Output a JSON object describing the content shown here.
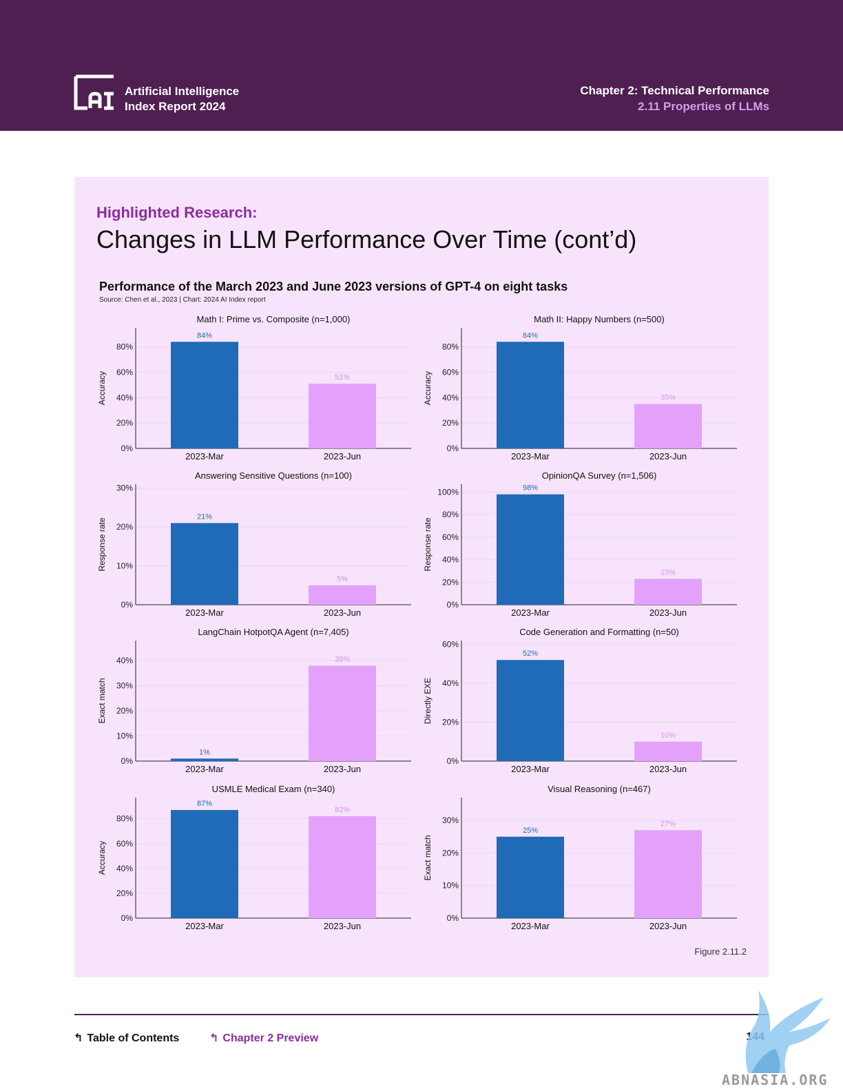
{
  "header": {
    "brand_line1": "Artificial Intelligence",
    "brand_line2": "Index Report 2024",
    "chapter": "Chapter 2: Technical Performance",
    "section": "2.11 Properties of LLMs",
    "background_color": "#4f1f52",
    "section_color": "#d79ce8"
  },
  "content": {
    "eyebrow": "Highlighted Research:",
    "title": "Changes in LLM Performance Over Time (cont’d)",
    "chart_title": "Performance of the March 2023 and June 2023 versions of GPT-4 on eight tasks",
    "chart_source": "Source: Chen et al., 2023 | Chart: 2024 AI Index report",
    "figure_label": "Figure 2.11.2",
    "panel_color": "#f7e4fc"
  },
  "chart_data": [
    {
      "type": "bar",
      "title": "Math I: Prime vs. Composite (n=1,000)",
      "ylabel": "Accuracy",
      "categories": [
        "2023-Mar",
        "2023-Jun"
      ],
      "values": [
        84,
        51
      ],
      "labels": [
        "84%",
        "51%"
      ],
      "ylim": [
        0,
        95
      ],
      "yticks": [
        0,
        20,
        40,
        60,
        80
      ],
      "tick_suffix": "%",
      "colors": [
        "#1f6bb8",
        "#e4a1fb"
      ],
      "grid": true
    },
    {
      "type": "bar",
      "title": "Math II: Happy Numbers (n=500)",
      "ylabel": "Accuracy",
      "categories": [
        "2023-Mar",
        "2023-Jun"
      ],
      "values": [
        84,
        35
      ],
      "labels": [
        "84%",
        "35%"
      ],
      "ylim": [
        0,
        95
      ],
      "yticks": [
        0,
        20,
        40,
        60,
        80
      ],
      "tick_suffix": "%",
      "colors": [
        "#1f6bb8",
        "#e4a1fb"
      ],
      "grid": true
    },
    {
      "type": "bar",
      "title": "Answering Sensitive Questions (n=100)",
      "ylabel": "Response rate",
      "categories": [
        "2023-Mar",
        "2023-Jun"
      ],
      "values": [
        21,
        5
      ],
      "labels": [
        "21%",
        "5%"
      ],
      "ylim": [
        0,
        31
      ],
      "yticks": [
        0,
        10,
        20,
        30
      ],
      "tick_suffix": "%",
      "colors": [
        "#1f6bb8",
        "#e4a1fb"
      ],
      "grid": true
    },
    {
      "type": "bar",
      "title": "OpinionQA Survey (n=1,506)",
      "ylabel": "Response rate",
      "categories": [
        "2023-Mar",
        "2023-Jun"
      ],
      "values": [
        98,
        23
      ],
      "labels": [
        "98%",
        "23%"
      ],
      "ylim": [
        0,
        107
      ],
      "yticks": [
        0,
        20,
        40,
        60,
        80,
        100
      ],
      "tick_suffix": "%",
      "colors": [
        "#1f6bb8",
        "#e4a1fb"
      ],
      "grid": true
    },
    {
      "type": "bar",
      "title": "LangChain HotpotQA Agent (n=7,405)",
      "ylabel": "Exact match",
      "categories": [
        "2023-Mar",
        "2023-Jun"
      ],
      "values": [
        1,
        38
      ],
      "labels": [
        "1%",
        "38%"
      ],
      "ylim": [
        0,
        48
      ],
      "yticks": [
        0,
        10,
        20,
        30,
        40
      ],
      "tick_suffix": "%",
      "colors": [
        "#1f6bb8",
        "#e4a1fb"
      ],
      "grid": true
    },
    {
      "type": "bar",
      "title": "Code Generation and Formatting (n=50)",
      "ylabel": "Directly EXE",
      "categories": [
        "2023-Mar",
        "2023-Jun"
      ],
      "values": [
        52,
        10
      ],
      "labels": [
        "52%",
        "10%"
      ],
      "ylim": [
        0,
        62
      ],
      "yticks": [
        0,
        20,
        40,
        60
      ],
      "tick_suffix": "%",
      "colors": [
        "#1f6bb8",
        "#e4a1fb"
      ],
      "grid": true
    },
    {
      "type": "bar",
      "title": "USMLE Medical Exam (n=340)",
      "ylabel": "Accuracy",
      "categories": [
        "2023-Mar",
        "2023-Jun"
      ],
      "values": [
        87,
        82
      ],
      "labels": [
        "87%",
        "82%"
      ],
      "ylim": [
        0,
        97
      ],
      "yticks": [
        0,
        20,
        40,
        60,
        80
      ],
      "tick_suffix": "%",
      "colors": [
        "#1f6bb8",
        "#e4a1fb"
      ],
      "grid": true
    },
    {
      "type": "bar",
      "title": "Visual Reasoning (n=467)",
      "ylabel": "Exact match",
      "categories": [
        "2023-Mar",
        "2023-Jun"
      ],
      "values": [
        25,
        27
      ],
      "labels": [
        "25%",
        "27%"
      ],
      "ylim": [
        0,
        37
      ],
      "yticks": [
        0,
        10,
        20,
        30
      ],
      "tick_suffix": "%",
      "colors": [
        "#1f6bb8",
        "#e4a1fb"
      ],
      "grid": true
    }
  ],
  "footer": {
    "toc_label": "Table of Contents",
    "chapter_preview_label": "Chapter 2 Preview",
    "page_number": "144"
  },
  "watermark": {
    "text": "ABNASIA.ORG"
  }
}
